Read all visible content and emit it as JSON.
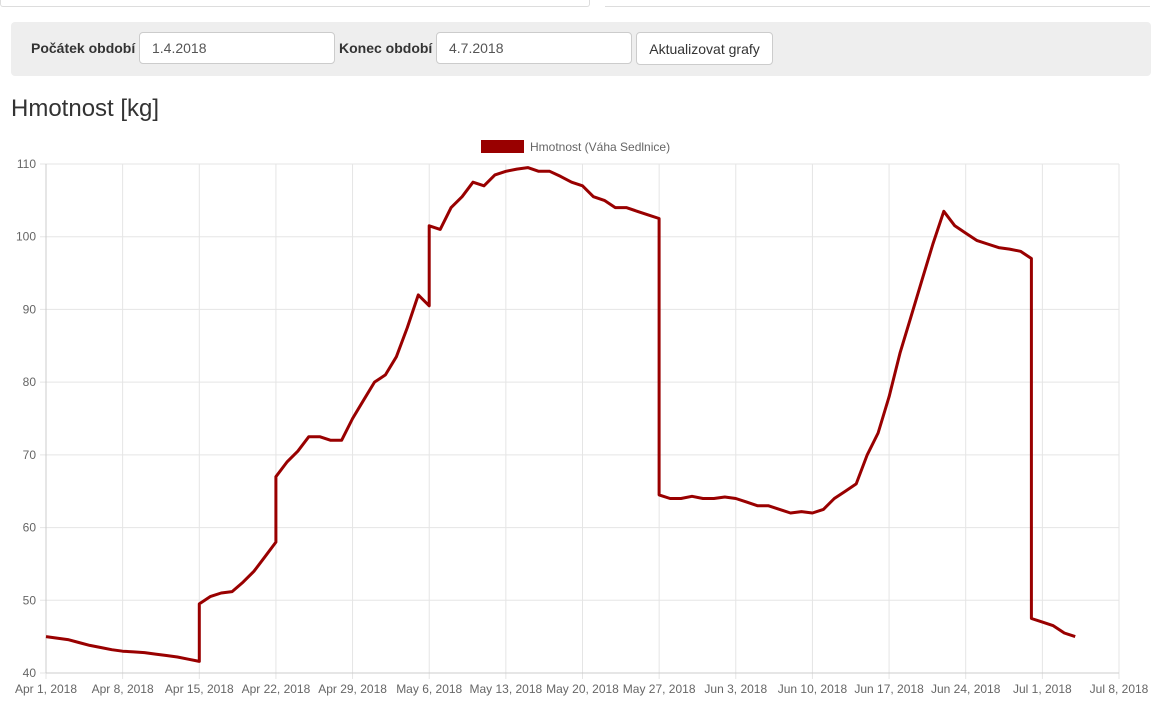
{
  "filter": {
    "start_label": "Počátek období",
    "start_value": "1.4.2018",
    "end_label": "Konec období",
    "end_value": "4.7.2018",
    "update_button": "Aktualizovat grafy"
  },
  "page_title": "Hmotnost [kg]",
  "chart_data": {
    "type": "line",
    "title": "",
    "xlabel": "",
    "ylabel": "",
    "ylim": [
      40,
      110
    ],
    "yticks": [
      "40",
      "50",
      "60",
      "70",
      "80",
      "90",
      "100",
      "110"
    ],
    "xlim": [
      "2018-04-01",
      "2018-07-08"
    ],
    "xticks": [
      {
        "date": "2018-04-01",
        "label": "Apr 1, 2018"
      },
      {
        "date": "2018-04-08",
        "label": "Apr 8, 2018"
      },
      {
        "date": "2018-04-15",
        "label": "Apr 15, 2018"
      },
      {
        "date": "2018-04-22",
        "label": "Apr 22, 2018"
      },
      {
        "date": "2018-04-29",
        "label": "Apr 29, 2018"
      },
      {
        "date": "2018-05-06",
        "label": "May 6, 2018"
      },
      {
        "date": "2018-05-13",
        "label": "May 13, 2018"
      },
      {
        "date": "2018-05-20",
        "label": "May 20, 2018"
      },
      {
        "date": "2018-05-27",
        "label": "May 27, 2018"
      },
      {
        "date": "2018-06-03",
        "label": "Jun 3, 2018"
      },
      {
        "date": "2018-06-10",
        "label": "Jun 10, 2018"
      },
      {
        "date": "2018-06-17",
        "label": "Jun 17, 2018"
      },
      {
        "date": "2018-06-24",
        "label": "Jun 24, 2018"
      },
      {
        "date": "2018-07-01",
        "label": "Jul 1, 2018"
      },
      {
        "date": "2018-07-08",
        "label": "Jul 8, 2018"
      }
    ],
    "grid": true,
    "legend_position": "top-center",
    "series": [
      {
        "name": "Hmotnost (Váha Sedlnice)",
        "color": "#990000",
        "points": [
          [
            "2018-04-01",
            45.0
          ],
          [
            "2018-04-02",
            44.8
          ],
          [
            "2018-04-03",
            44.6
          ],
          [
            "2018-04-04",
            44.2
          ],
          [
            "2018-04-05",
            43.8
          ],
          [
            "2018-04-06",
            43.5
          ],
          [
            "2018-04-07",
            43.2
          ],
          [
            "2018-04-08",
            43.0
          ],
          [
            "2018-04-09",
            42.9
          ],
          [
            "2018-04-10",
            42.8
          ],
          [
            "2018-04-11",
            42.6
          ],
          [
            "2018-04-12",
            42.4
          ],
          [
            "2018-04-13",
            42.2
          ],
          [
            "2018-04-14",
            41.9
          ],
          [
            "2018-04-15",
            41.6
          ],
          [
            "2018-04-15",
            49.5
          ],
          [
            "2018-04-16",
            50.5
          ],
          [
            "2018-04-17",
            51.0
          ],
          [
            "2018-04-18",
            51.2
          ],
          [
            "2018-04-19",
            52.5
          ],
          [
            "2018-04-20",
            54.0
          ],
          [
            "2018-04-21",
            56.0
          ],
          [
            "2018-04-22",
            58.0
          ],
          [
            "2018-04-22",
            67.0
          ],
          [
            "2018-04-23",
            69.0
          ],
          [
            "2018-04-24",
            70.5
          ],
          [
            "2018-04-25",
            72.5
          ],
          [
            "2018-04-26",
            72.5
          ],
          [
            "2018-04-27",
            72.0
          ],
          [
            "2018-04-28",
            72.0
          ],
          [
            "2018-04-29",
            75.0
          ],
          [
            "2018-04-30",
            77.5
          ],
          [
            "2018-05-01",
            80.0
          ],
          [
            "2018-05-02",
            81.0
          ],
          [
            "2018-05-03",
            83.5
          ],
          [
            "2018-05-04",
            87.5
          ],
          [
            "2018-05-05",
            92.0
          ],
          [
            "2018-05-06",
            90.5
          ],
          [
            "2018-05-06",
            101.5
          ],
          [
            "2018-05-07",
            101.0
          ],
          [
            "2018-05-08",
            104.0
          ],
          [
            "2018-05-09",
            105.5
          ],
          [
            "2018-05-10",
            107.5
          ],
          [
            "2018-05-11",
            107.0
          ],
          [
            "2018-05-12",
            108.5
          ],
          [
            "2018-05-13",
            109.0
          ],
          [
            "2018-05-14",
            109.3
          ],
          [
            "2018-05-15",
            109.5
          ],
          [
            "2018-05-16",
            109.0
          ],
          [
            "2018-05-17",
            109.0
          ],
          [
            "2018-05-18",
            108.3
          ],
          [
            "2018-05-19",
            107.5
          ],
          [
            "2018-05-20",
            107.0
          ],
          [
            "2018-05-21",
            105.5
          ],
          [
            "2018-05-22",
            105.0
          ],
          [
            "2018-05-23",
            104.0
          ],
          [
            "2018-05-24",
            104.0
          ],
          [
            "2018-05-25",
            103.5
          ],
          [
            "2018-05-26",
            103.0
          ],
          [
            "2018-05-27",
            102.5
          ],
          [
            "2018-05-27",
            64.5
          ],
          [
            "2018-05-28",
            64.0
          ],
          [
            "2018-05-29",
            64.0
          ],
          [
            "2018-05-30",
            64.3
          ],
          [
            "2018-05-31",
            64.0
          ],
          [
            "2018-06-01",
            64.0
          ],
          [
            "2018-06-02",
            64.2
          ],
          [
            "2018-06-03",
            64.0
          ],
          [
            "2018-06-04",
            63.5
          ],
          [
            "2018-06-05",
            63.0
          ],
          [
            "2018-06-06",
            63.0
          ],
          [
            "2018-06-07",
            62.5
          ],
          [
            "2018-06-08",
            62.0
          ],
          [
            "2018-06-09",
            62.2
          ],
          [
            "2018-06-10",
            62.0
          ],
          [
            "2018-06-11",
            62.5
          ],
          [
            "2018-06-12",
            64.0
          ],
          [
            "2018-06-13",
            65.0
          ],
          [
            "2018-06-14",
            66.0
          ],
          [
            "2018-06-15",
            70.0
          ],
          [
            "2018-06-16",
            73.0
          ],
          [
            "2018-06-17",
            78.0
          ],
          [
            "2018-06-18",
            84.0
          ],
          [
            "2018-06-19",
            89.0
          ],
          [
            "2018-06-20",
            94.0
          ],
          [
            "2018-06-21",
            99.0
          ],
          [
            "2018-06-22",
            103.5
          ],
          [
            "2018-06-23",
            101.5
          ],
          [
            "2018-06-24",
            100.5
          ],
          [
            "2018-06-25",
            99.5
          ],
          [
            "2018-06-26",
            99.0
          ],
          [
            "2018-06-27",
            98.5
          ],
          [
            "2018-06-28",
            98.3
          ],
          [
            "2018-06-29",
            98.0
          ],
          [
            "2018-06-30",
            97.0
          ],
          [
            "2018-06-30",
            47.5
          ],
          [
            "2018-07-01",
            47.0
          ],
          [
            "2018-07-02",
            46.5
          ],
          [
            "2018-07-03",
            45.5
          ],
          [
            "2018-07-04",
            45.0
          ]
        ]
      }
    ]
  }
}
